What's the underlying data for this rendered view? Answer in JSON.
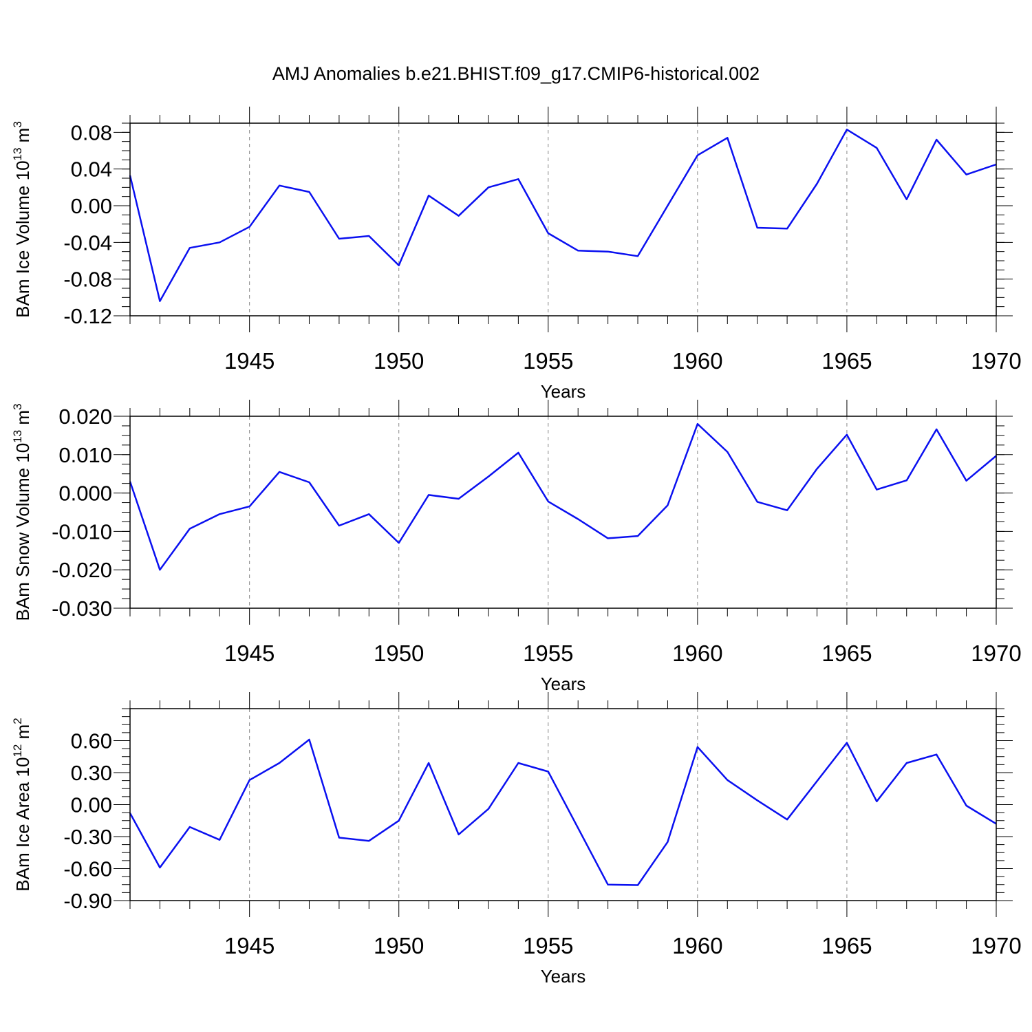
{
  "title": "AMJ Anomalies b.e21.BHIST.f09_g17.CMIP6-historical.002",
  "colors": {
    "series": "#0a10f0",
    "grid": "#888888"
  },
  "chart_data": [
    {
      "type": "line",
      "title": "AMJ Anomalies b.e21.BHIST.f09_g17.CMIP6-historical.002",
      "xlabel": "Years",
      "ylabel": {
        "main": "BAm Ice Volume 10",
        "sup": "13",
        "unit": " m",
        "unit_sup": "3"
      },
      "xlim": [
        1941,
        1970
      ],
      "ylim": [
        -0.12,
        0.09
      ],
      "yticks": [
        -0.12,
        -0.08,
        -0.04,
        0.0,
        0.04,
        0.08
      ],
      "ytick_labels": [
        "-0.12",
        "-0.08",
        "-0.04",
        "0.00",
        "0.04",
        "0.08"
      ],
      "yminor_step": 0.01,
      "xticks": [
        1945,
        1950,
        1955,
        1960,
        1965,
        1970
      ],
      "xtick_labels": [
        "1945",
        "1950",
        "1955",
        "1960",
        "1965",
        "1970"
      ],
      "grid_x": true,
      "x": [
        1941,
        1942,
        1943,
        1944,
        1945,
        1946,
        1947,
        1948,
        1949,
        1950,
        1951,
        1952,
        1953,
        1954,
        1955,
        1956,
        1957,
        1958,
        1959,
        1960,
        1961,
        1962,
        1963,
        1964,
        1965,
        1966,
        1967,
        1968,
        1969,
        1970
      ],
      "series": [
        {
          "name": "BAm Ice Volume",
          "values": [
            0.033,
            -0.104,
            -0.046,
            -0.04,
            -0.023,
            0.022,
            0.015,
            -0.036,
            -0.033,
            -0.065,
            0.011,
            -0.011,
            0.02,
            0.029,
            -0.03,
            -0.049,
            -0.05,
            -0.055,
            0.0,
            0.055,
            0.074,
            -0.024,
            -0.025,
            0.024,
            0.083,
            0.063,
            0.007,
            0.072,
            0.034,
            0.045
          ]
        }
      ]
    },
    {
      "type": "line",
      "xlabel": "Years",
      "ylabel": {
        "main": "BAm Snow Volume 10",
        "sup": "13",
        "unit": " m",
        "unit_sup": "3"
      },
      "xlim": [
        1941,
        1970
      ],
      "ylim": [
        -0.03,
        0.02
      ],
      "yticks": [
        -0.03,
        -0.02,
        -0.01,
        0.0,
        0.01,
        0.02
      ],
      "ytick_labels": [
        "-0.030",
        "-0.020",
        "-0.010",
        "0.000",
        "0.010",
        "0.020"
      ],
      "yminor_step": 0.0025,
      "xticks": [
        1945,
        1950,
        1955,
        1960,
        1965,
        1970
      ],
      "xtick_labels": [
        "1945",
        "1950",
        "1955",
        "1960",
        "1965",
        "1970"
      ],
      "grid_x": true,
      "x": [
        1941,
        1942,
        1943,
        1944,
        1945,
        1946,
        1947,
        1948,
        1949,
        1950,
        1951,
        1952,
        1953,
        1954,
        1955,
        1956,
        1957,
        1958,
        1959,
        1960,
        1961,
        1962,
        1963,
        1964,
        1965,
        1966,
        1967,
        1968,
        1969,
        1970
      ],
      "series": [
        {
          "name": "BAm Snow Volume",
          "values": [
            0.003,
            -0.02,
            -0.0093,
            -0.0055,
            -0.0035,
            0.0055,
            0.0028,
            -0.0085,
            -0.0055,
            -0.013,
            -0.0005,
            -0.0015,
            0.0043,
            0.0105,
            -0.0022,
            -0.0068,
            -0.0118,
            -0.0112,
            -0.0032,
            0.018,
            0.0107,
            -0.0023,
            -0.0045,
            0.0063,
            0.0152,
            0.0009,
            0.0033,
            0.0166,
            0.0032,
            0.0097
          ]
        }
      ]
    },
    {
      "type": "line",
      "xlabel": "Years",
      "ylabel": {
        "main": "BAm Ice Area 10",
        "sup": "12",
        "unit": " m",
        "unit_sup": "2"
      },
      "xlim": [
        1941,
        1970
      ],
      "ylim": [
        -0.9,
        0.9
      ],
      "yticks": [
        -0.9,
        -0.6,
        -0.3,
        0.0,
        0.3,
        0.6
      ],
      "ytick_labels": [
        "-0.90",
        "-0.60",
        "-0.30",
        "0.00",
        "0.30",
        "0.60"
      ],
      "yminor_step": 0.075,
      "xticks": [
        1945,
        1950,
        1955,
        1960,
        1965,
        1970
      ],
      "xtick_labels": [
        "1945",
        "1950",
        "1955",
        "1960",
        "1965",
        "1970"
      ],
      "grid_x": true,
      "x": [
        1941,
        1942,
        1943,
        1944,
        1945,
        1946,
        1947,
        1948,
        1949,
        1950,
        1951,
        1952,
        1953,
        1954,
        1955,
        1956,
        1957,
        1958,
        1959,
        1960,
        1961,
        1962,
        1963,
        1964,
        1965,
        1966,
        1967,
        1968,
        1969,
        1970
      ],
      "series": [
        {
          "name": "BAm Ice Area",
          "values": [
            -0.08,
            -0.59,
            -0.21,
            -0.33,
            0.23,
            0.39,
            0.61,
            -0.31,
            -0.34,
            -0.15,
            0.39,
            -0.28,
            -0.04,
            0.39,
            0.31,
            -0.22,
            -0.75,
            -0.755,
            -0.35,
            0.54,
            0.23,
            0.04,
            -0.14,
            0.22,
            0.58,
            0.03,
            0.39,
            0.47,
            -0.01,
            -0.18
          ]
        }
      ]
    }
  ]
}
